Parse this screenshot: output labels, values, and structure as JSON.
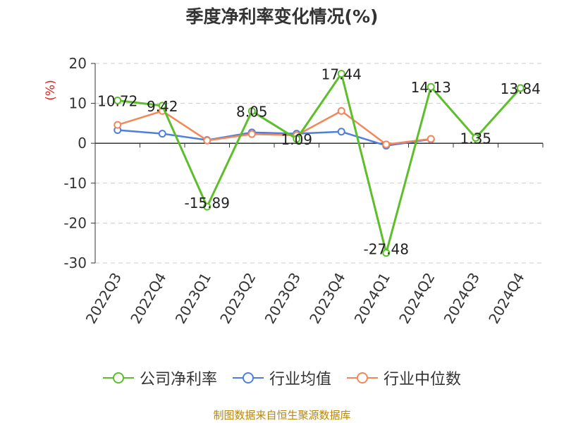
{
  "chart_data": {
    "type": "line",
    "title": "季度净利率变化情况(%)",
    "ylabel": "(%)",
    "categories": [
      "2022Q3",
      "2022Q4",
      "2023Q1",
      "2023Q2",
      "2023Q3",
      "2023Q4",
      "2024Q1",
      "2024Q2",
      "2024Q3",
      "2024Q4"
    ],
    "ylim": [
      -30,
      20
    ],
    "yticks": [
      20,
      10,
      0,
      -10,
      -20,
      -30
    ],
    "grid": true,
    "legend_position": "bottom",
    "series": [
      {
        "name": "公司净利率",
        "color": "#5cbf2a",
        "values": [
          10.72,
          9.42,
          -15.89,
          8.05,
          1.09,
          17.44,
          -27.48,
          14.13,
          1.35,
          13.84
        ],
        "labels": [
          "10.72",
          "9.42",
          "-15.89",
          "8.05",
          "1.09",
          "17.44",
          "-27.48",
          "14.13",
          "1.35",
          "13.84"
        ]
      },
      {
        "name": "行业均值",
        "color": "#4e7fdc",
        "values": [
          3.3,
          2.4,
          0.8,
          2.7,
          2.4,
          2.9,
          -0.6,
          1.0,
          null,
          null
        ]
      },
      {
        "name": "行业中位数",
        "color": "#f2875a",
        "values": [
          4.6,
          8.1,
          0.7,
          2.3,
          2.0,
          8.1,
          -0.3,
          1.1,
          null,
          null
        ]
      }
    ]
  },
  "legend": {
    "company": "公司净利率",
    "avg": "行业均值",
    "median": "行业中位数"
  },
  "source_text": "制图数据来自恒生聚源数据库"
}
